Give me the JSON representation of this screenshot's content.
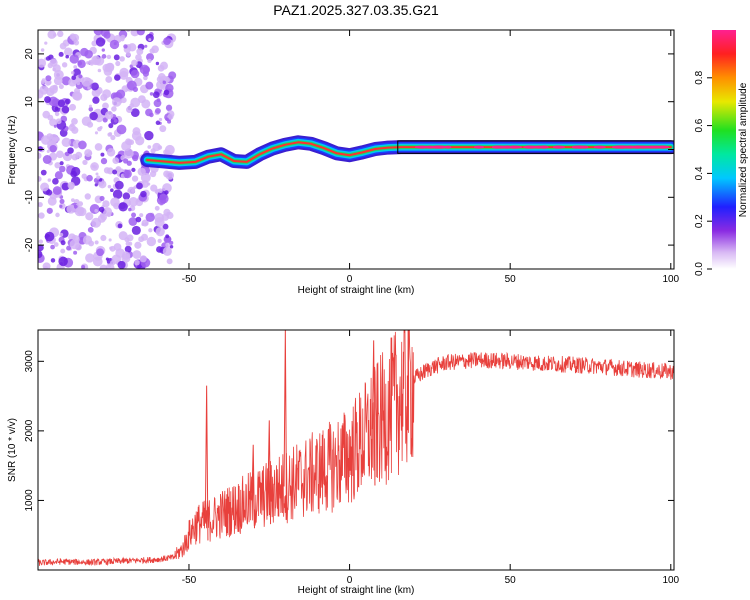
{
  "title": "PAZ1.2025.327.03.35.G21",
  "chart_data": [
    {
      "type": "heatmap",
      "xlabel": "Height of straight line (km)",
      "ylabel": "Frequency (Hz)",
      "xlim": [
        -97,
        101
      ],
      "ylim": [
        -25,
        25
      ],
      "xticks": [
        -50,
        0,
        50,
        100
      ],
      "yticks": [
        -20,
        -10,
        0,
        10,
        20
      ],
      "ridge": {
        "x": [
          -63,
          -58,
          -53,
          -48,
          -44,
          -40,
          -36,
          -32,
          -28,
          -24,
          -20,
          -16,
          -12,
          -8,
          -4,
          0,
          4,
          8,
          12,
          16,
          20,
          30,
          40,
          50,
          60,
          70,
          80,
          90,
          100
        ],
        "freq": [
          -2.2,
          -2.5,
          -2.8,
          -2.6,
          -1.5,
          -1.0,
          -2.4,
          -2.6,
          -1.0,
          0.2,
          1.0,
          1.5,
          1.2,
          0.3,
          -0.8,
          -1.2,
          -0.6,
          0.1,
          0.4,
          0.5,
          0.5,
          0.5,
          0.5,
          0.5,
          0.5,
          0.5,
          0.5,
          0.5,
          0.5
        ]
      },
      "noise_region_x": [
        -97,
        -55
      ]
    },
    {
      "type": "line",
      "xlabel": "Height of straight line (km)",
      "ylabel": "SNR (10 * v/v)",
      "xlim": [
        -97,
        101
      ],
      "ylim": [
        0,
        3450
      ],
      "xticks": [
        -50,
        0,
        50,
        100
      ],
      "yticks": [
        1000,
        2000,
        3000
      ],
      "color": "#e8403c",
      "series": {
        "name": "SNR",
        "x": [
          -97,
          -90,
          -80,
          -70,
          -60,
          -55,
          -52,
          -50,
          -48,
          -45,
          -42,
          -40,
          -35,
          -30,
          -25,
          -20,
          -15,
          -10,
          -5,
          0,
          5,
          8,
          10,
          12,
          15,
          18,
          20,
          25,
          30,
          35,
          40,
          45,
          50,
          55,
          60,
          70,
          80,
          90,
          101
        ],
        "y": [
          100,
          120,
          110,
          130,
          150,
          180,
          300,
          500,
          650,
          700,
          750,
          800,
          900,
          1000,
          1100,
          1200,
          1300,
          1400,
          1500,
          1650,
          1900,
          2050,
          2150,
          2250,
          2450,
          2600,
          2750,
          2900,
          2980,
          3000,
          3020,
          3010,
          3000,
          2990,
          2970,
          2950,
          2920,
          2880,
          2850
        ]
      },
      "spikes": [
        {
          "x": -44.5,
          "y": 2650
        },
        {
          "x": -20,
          "y": 3450
        },
        {
          "x": 7.5,
          "y": 3300
        },
        {
          "x": -30,
          "y": 1800
        },
        {
          "x": -25,
          "y": 2150
        }
      ]
    }
  ],
  "colorbar": {
    "label": "Normalized spectral amplitude",
    "range": [
      0,
      1
    ],
    "ticks": [
      0.0,
      0.2,
      0.4,
      0.6,
      0.8
    ]
  }
}
